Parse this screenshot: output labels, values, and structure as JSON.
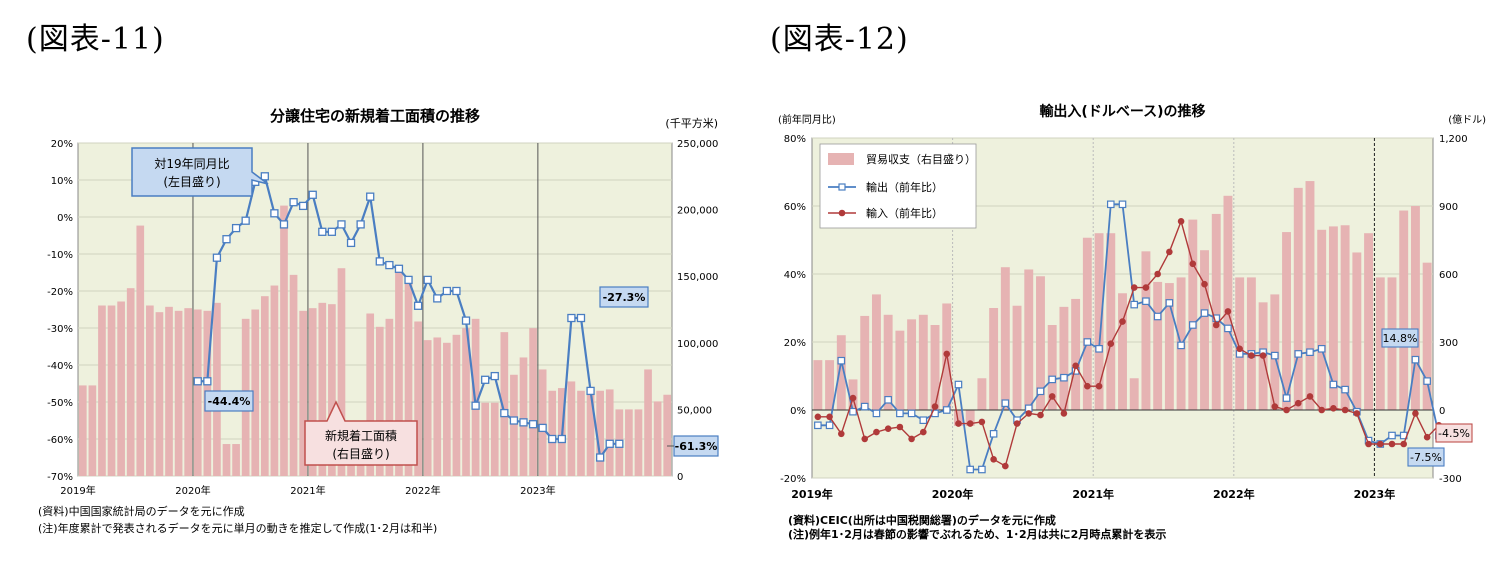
{
  "figures": {
    "fig1_heading": "(図表-11)",
    "fig2_heading": "(図表-12)"
  },
  "chart_data": [
    {
      "type": "bar+line",
      "title": "分譲住宅の新規着工面積の推移",
      "left_unit": "",
      "right_unit": "(千平方米)",
      "left_axis": {
        "min": -70,
        "max": 20,
        "step": 10,
        "suffix": "%",
        "ticks": [
          "20%",
          "10%",
          "0%",
          "-10%",
          "-20%",
          "-30%",
          "-40%",
          "-50%",
          "-60%",
          "-70%"
        ]
      },
      "right_axis": {
        "min": 0,
        "max": 250000,
        "step": 50000,
        "ticks": [
          "250,000",
          "200,000",
          "150,000",
          "100,000",
          "50,000",
          "0"
        ]
      },
      "x_labels": [
        "2019年",
        "2020年",
        "2021年",
        "2022年",
        "2023年"
      ],
      "bar_series": {
        "name": "新規着工面積（右目盛り）",
        "values": [
          68000,
          68000,
          128000,
          128000,
          131000,
          141000,
          188000,
          128000,
          123000,
          127000,
          124000,
          126000,
          125000,
          124000,
          130000,
          24000,
          24000,
          118000,
          125000,
          135000,
          143000,
          203000,
          151000,
          124000,
          126000,
          130000,
          129000,
          156000,
          20000,
          20000,
          122000,
          112000,
          118000,
          158000,
          150000,
          116000,
          102000,
          104000,
          100000,
          106000,
          111000,
          118000,
          55000,
          55000,
          108000,
          76000,
          89000,
          111000,
          80000,
          64000,
          66000,
          71000,
          64000,
          62000,
          64000,
          65000,
          50000,
          50000,
          50000,
          80000,
          56000,
          61000
        ]
      },
      "line_series": {
        "name": "対19年同月比（左目盛り）",
        "values": [
          null,
          null,
          null,
          null,
          null,
          null,
          null,
          null,
          null,
          null,
          null,
          null,
          -44.4,
          -44.4,
          -11,
          -6,
          -3,
          -1,
          9.5,
          11,
          1,
          -2,
          4,
          3,
          6,
          -4,
          -4,
          -2,
          -7,
          -2,
          5.5,
          -12,
          -13,
          -14,
          -17,
          -24,
          -17,
          -22,
          -20,
          -20,
          -28,
          -51,
          -44,
          -43,
          -53,
          -55,
          -55.5,
          -56,
          -57,
          -60,
          -60,
          -27.3,
          -27.3,
          -47,
          -65,
          -61.3,
          -61.3
        ],
        "start_index": 0
      },
      "callouts": [
        {
          "label": "対19年同月比",
          "label2": "(左目盛り)"
        },
        {
          "label": "新規着工面積",
          "label2": "(右目盛り)"
        },
        {
          "label": "-44.4%"
        },
        {
          "label": "-27.3%"
        },
        {
          "label": "-61.3%"
        }
      ]
    },
    {
      "type": "bar+line",
      "title": "輸出入(ドルベース)の推移",
      "left_unit": "(前年同月比)",
      "right_unit": "(億ドル)",
      "left_axis": {
        "min": -20,
        "max": 80,
        "step": 20,
        "ticks": [
          "80%",
          "60%",
          "40%",
          "20%",
          "0%",
          "-20%"
        ]
      },
      "right_axis": {
        "min": -300,
        "max": 1200,
        "step": 300,
        "ticks": [
          "1,200",
          "900",
          "600",
          "300",
          "0",
          "-300"
        ]
      },
      "x_labels": [
        "2019年",
        "2020年",
        "2021年",
        "2022年",
        "2023年"
      ],
      "legend": [
        "貿易収支（右目盛り）",
        "輸出（前年比）",
        "輸入（前年比）"
      ],
      "bar_series": {
        "name": "貿易収支（右目盛り）",
        "values": [
          220,
          220,
          330,
          135,
          415,
          510,
          420,
          350,
          400,
          420,
          375,
          470,
          -70,
          -70,
          140,
          450,
          630,
          460,
          620,
          590,
          375,
          455,
          490,
          760,
          780,
          780,
          515,
          140,
          700,
          565,
          560,
          585,
          840,
          705,
          865,
          945,
          585,
          585,
          475,
          510,
          785,
          980,
          1010,
          795,
          810,
          815,
          695,
          780,
          585,
          585,
          880,
          900,
          650
        ]
      },
      "line_series": [
        {
          "name": "輸出（前年比）",
          "values": [
            -4.5,
            -4.5,
            14.5,
            -0.5,
            1,
            -1,
            3,
            -1,
            -1,
            -3,
            -1,
            0,
            7.5,
            -17.5,
            -17.5,
            -7,
            2,
            -3,
            0.5,
            5.5,
            9,
            9.5,
            11.5,
            20,
            18,
            60.5,
            60.5,
            31,
            32,
            27.5,
            31.5,
            19,
            25,
            28.5,
            27,
            24,
            16.5,
            16.5,
            17,
            16,
            3.5,
            16.5,
            17,
            18,
            7.5,
            6,
            -0.5,
            -9,
            -10,
            -7.5,
            -7.5,
            14.8,
            8.5,
            -7.5
          ]
        },
        {
          "name": "輸入（前年比）",
          "values": [
            -2,
            -2,
            -7,
            3.5,
            -8.5,
            -6.5,
            -5.5,
            -5,
            -8.5,
            -6.5,
            1,
            16.5,
            -4,
            -4,
            -3.5,
            -14.5,
            -16.5,
            -4,
            -1,
            -1.5,
            4,
            -1,
            13,
            7,
            7,
            19.5,
            26,
            36,
            36,
            40,
            46.5,
            55.5,
            43,
            37,
            25,
            29,
            18,
            16,
            16,
            1,
            0,
            2,
            4,
            0,
            0.5,
            0,
            -1,
            -10,
            -10,
            -10,
            -10,
            -1,
            -8,
            -4.5
          ]
        }
      ],
      "callouts": [
        {
          "label": "14.8%"
        },
        {
          "label": "-7.5%"
        },
        {
          "label": "-4.5%"
        }
      ]
    }
  ],
  "notes": {
    "fig1_source": "(資料)中国国家統計局のデータを元に作成",
    "fig1_note": "(注)年度累計で発表されるデータを元に単月の動きを推定して作成(1･2月は和半)",
    "fig2_source": "(資料)CEIC(出所は中国税関総署)のデータを元に作成",
    "fig2_note": "(注)例年1･2月は春節の影響でぶれるため、1･2月は共に2月時点累計を表示"
  },
  "colors": {
    "plot_bg": "#eef1dd",
    "bar": "#e6b3b3",
    "line_blue": "#4a7ec2",
    "line_red": "#b03a3a",
    "callout_fill": "#c5d9f1",
    "callout_border": "#4a7ec2",
    "callout2_fill": "#f7e0e0",
    "callout2_border": "#c0504d"
  }
}
